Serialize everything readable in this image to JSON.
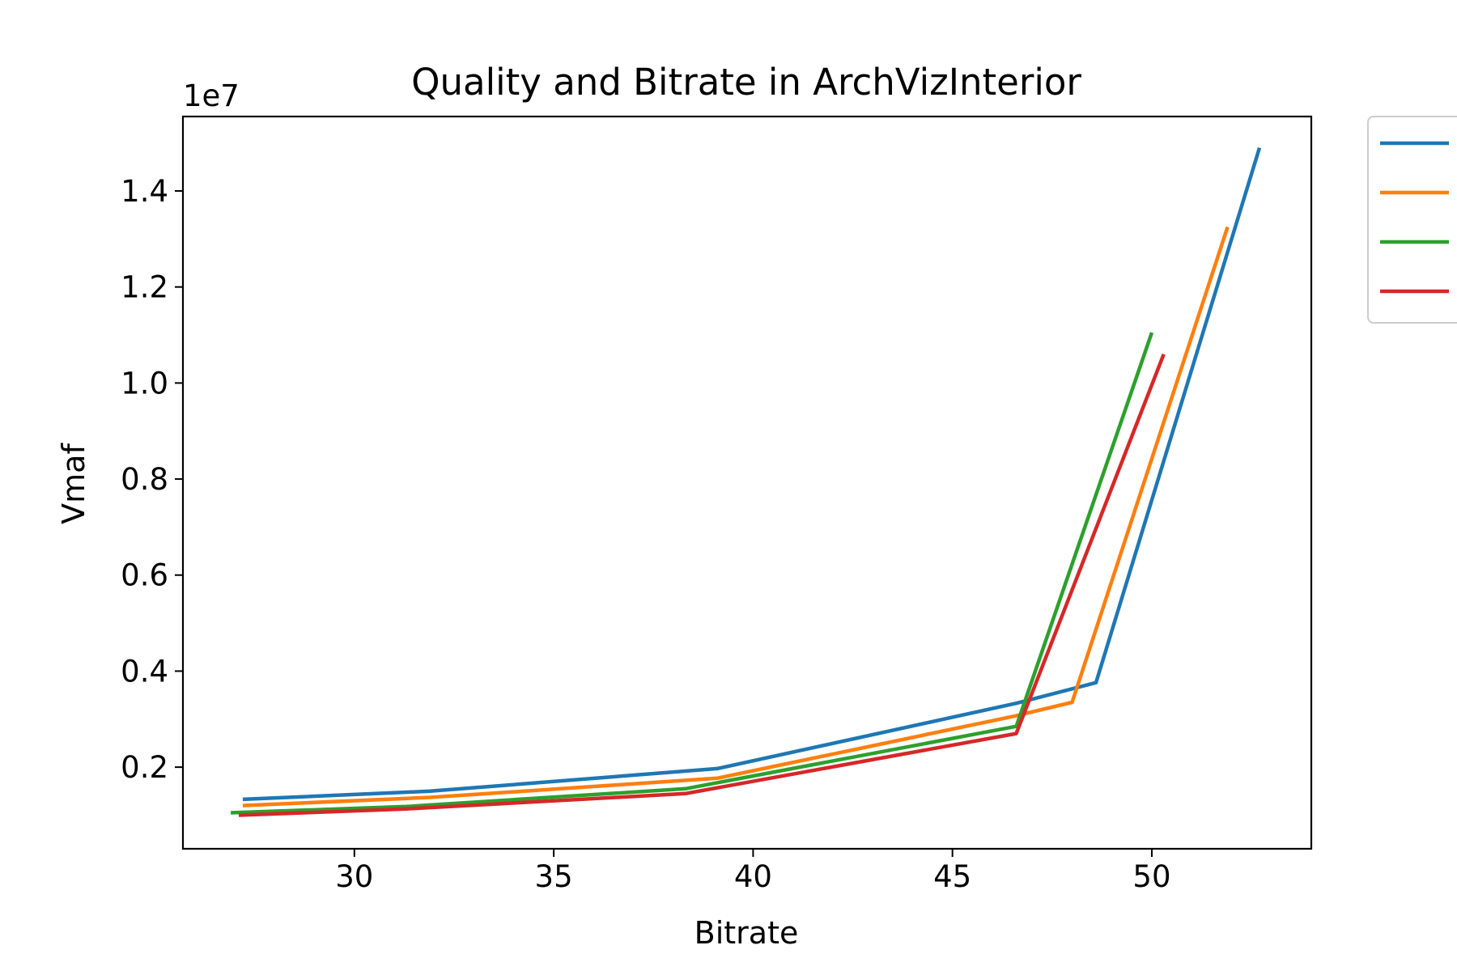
{
  "chart_data": {
    "type": "line",
    "title": "Quality and Bitrate in ArchVizInterior",
    "xlabel": "Bitrate",
    "ylabel": "Vmaf",
    "y_offset_label": "1e7",
    "xlim": [
      25.7,
      54.0
    ],
    "ylim": [
      0.03,
      1.555
    ],
    "x_ticks": [
      30,
      35,
      40,
      45,
      50
    ],
    "x_tick_labels": [
      "30",
      "35",
      "40",
      "45",
      "50"
    ],
    "y_ticks": [
      0.2,
      0.4,
      0.6,
      0.8,
      1.0,
      1.2,
      1.4
    ],
    "y_tick_labels": [
      "0.2",
      "0.4",
      "0.6",
      "0.8",
      "1.0",
      "1.2",
      "1.4"
    ],
    "grid": false,
    "legend": {
      "placement": "upper-right-outside",
      "entries": [
        "",
        "",
        "",
        ""
      ]
    },
    "series": [
      {
        "color": "#1f77b4",
        "x": [
          27.2,
          31.9,
          39.1,
          46.6,
          48.6,
          52.7
        ],
        "y": [
          0.133,
          0.15,
          0.197,
          0.333,
          0.376,
          1.49
        ]
      },
      {
        "color": "#ff7f0e",
        "x": [
          27.2,
          31.9,
          39.1,
          46.6,
          48.0,
          51.9
        ],
        "y": [
          0.12,
          0.137,
          0.177,
          0.307,
          0.335,
          1.325
        ]
      },
      {
        "color": "#2ca02c",
        "x": [
          26.9,
          31.3,
          38.3,
          46.6,
          50.0
        ],
        "y": [
          0.105,
          0.118,
          0.155,
          0.285,
          1.105
        ]
      },
      {
        "color": "#d62728",
        "x": [
          27.1,
          31.3,
          38.3,
          46.6,
          50.3
        ],
        "y": [
          0.1,
          0.113,
          0.145,
          0.27,
          1.06
        ]
      }
    ]
  }
}
